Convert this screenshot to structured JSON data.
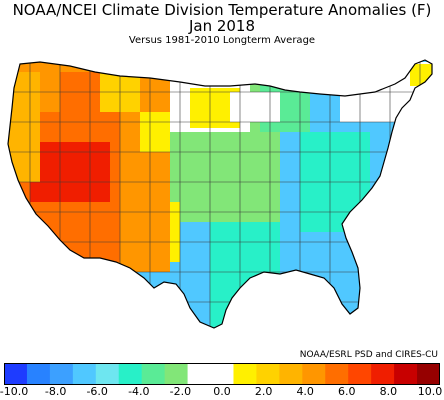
{
  "title": "NOAA/NCEI Climate Division Temperature Anomalies (F)",
  "period": "Jan 2018",
  "subtitle": "Versus 1981-2010 Longterm Average",
  "credit": "NOAA/ESRL PSD and CIRES-CU",
  "legend": {
    "min": -10.0,
    "max": 10.0,
    "tick_labels": [
      "-10.0",
      "-8.0",
      "-6.0",
      "-4.0",
      "-2.0",
      "0.0",
      "2.0",
      "4.0",
      "6.0",
      "8.0",
      "10.0"
    ],
    "colors": [
      "#1e3cff",
      "#2882ff",
      "#3ca0ff",
      "#50c8ff",
      "#6ee6f0",
      "#28f0c8",
      "#5aeb96",
      "#82e678",
      "#ffffff",
      "#ffffff",
      "#fff000",
      "#ffd200",
      "#ffb400",
      "#ff9600",
      "#ff6e00",
      "#ff4600",
      "#f01e00",
      "#c80000",
      "#960000"
    ]
  },
  "map_colors": {
    "outline": "#000000",
    "border": "#555555",
    "ocean": "#ffffff"
  }
}
